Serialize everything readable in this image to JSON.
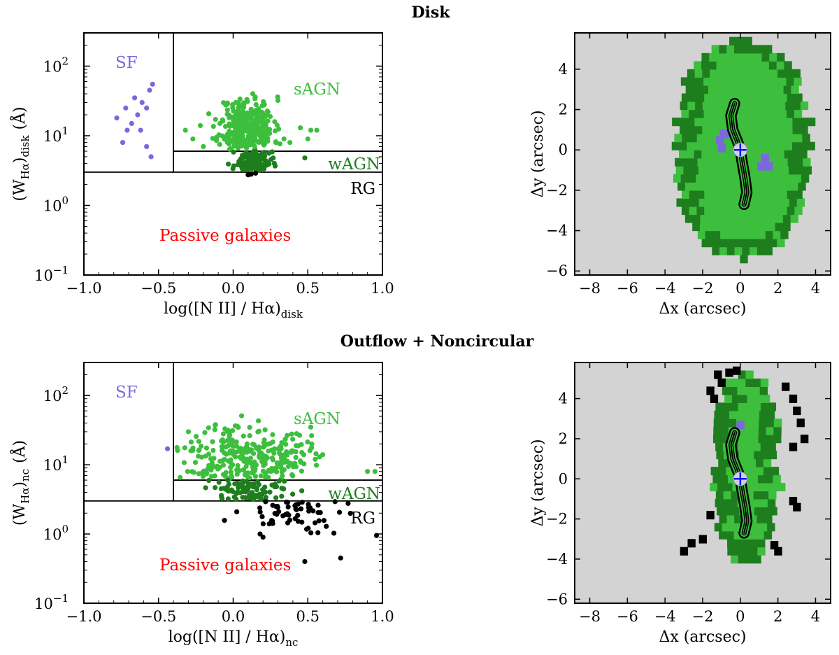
{
  "sections": [
    {
      "title": "Disk"
    },
    {
      "title": "Outflow + Noncircular"
    }
  ],
  "colors": {
    "sf": "#7B68DD",
    "sagn": "#3DBF3D",
    "wagn": "#1E7E1E",
    "rg": "#000000",
    "passive": "#FF0000",
    "map_bg": "#D3D3D3",
    "center_marker": "#1010FF"
  },
  "chart_data": [
    {
      "type": "scatter",
      "panel": "whan-disk",
      "xlabel": "log([N II] / Hα)",
      "xlabel_sub": "disk",
      "ylabel": "(W",
      "ylabel_sub_inner": "Hα",
      "ylabel_close": ")",
      "ylabel_sub": "disk",
      "ylabel_unit": "(Å)",
      "xlim": [
        -1.0,
        1.0
      ],
      "ylim": [
        0.1,
        300
      ],
      "yscale": "log",
      "xticks": [
        "−1.0",
        "−0.5",
        "0.0",
        "0.5",
        "1.0"
      ],
      "xtick_values": [
        -1.0,
        -0.5,
        0.0,
        0.5,
        1.0
      ],
      "yticks": [
        {
          "base": "10",
          "exp": "−1",
          "value": 0.1
        },
        {
          "base": "10",
          "exp": "0",
          "value": 1
        },
        {
          "base": "10",
          "exp": "1",
          "value": 10
        },
        {
          "base": "10",
          "exp": "2",
          "value": 100
        }
      ],
      "boundaries": {
        "nii_split": -0.4,
        "w_sagn_wagn": 6,
        "w_agn_rg": 3
      },
      "region_labels": {
        "sf": "SF",
        "sagn": "sAGN",
        "wagn": "wAGN",
        "rg": "RG",
        "passive": "Passive galaxies"
      },
      "series": [
        {
          "name": "SF",
          "points": [
            [
              -0.54,
              55
            ],
            [
              -0.56,
              45
            ],
            [
              -0.61,
              30
            ],
            [
              -0.66,
              35
            ],
            [
              -0.72,
              25
            ],
            [
              -0.78,
              18
            ],
            [
              -0.64,
              20
            ],
            [
              -0.58,
              25
            ],
            [
              -0.68,
              15
            ],
            [
              -0.71,
              12
            ],
            [
              -0.62,
              12
            ],
            [
              -0.74,
              8
            ],
            [
              -0.58,
              7
            ],
            [
              -0.55,
              5
            ]
          ]
        },
        {
          "name": "sAGN",
          "generated": {
            "count": 300,
            "x_mean": 0.09,
            "x_sd": 0.09,
            "logy_mean": 1.12,
            "logy_sd": 0.22,
            "ymin": 6.2,
            "ymax": 44,
            "seed": 11
          },
          "extra": [
            [
              -0.32,
              12
            ],
            [
              -0.27,
              9
            ],
            [
              -0.22,
              14
            ],
            [
              0.5,
              9
            ],
            [
              0.52,
              12
            ],
            [
              0.56,
              12
            ],
            [
              0.45,
              13
            ],
            [
              -0.2,
              7
            ],
            [
              0.38,
              8
            ]
          ]
        },
        {
          "name": "wAGN",
          "generated": {
            "count": 110,
            "x_mean": 0.13,
            "x_sd": 0.06,
            "logy_mean": 0.62,
            "logy_sd": 0.1,
            "ymin": 3.1,
            "ymax": 6.0,
            "seed": 23
          },
          "extra": [
            [
              0.48,
              4.8
            ]
          ]
        },
        {
          "name": "RG",
          "points": [
            [
              0.12,
              2.8
            ],
            [
              0.15,
              2.9
            ],
            [
              0.1,
              2.75
            ]
          ]
        }
      ]
    },
    {
      "type": "heatmap",
      "panel": "map-disk",
      "xlabel": "Δx (arcsec)",
      "ylabel": "Δy (arcsec)",
      "xlim": [
        -8.8,
        4.8
      ],
      "ylim": [
        -6.2,
        5.8
      ],
      "xticks": [
        "−8",
        "−6",
        "−4",
        "−2",
        "0",
        "2",
        "4"
      ],
      "xtick_values": [
        -8,
        -6,
        -4,
        -2,
        0,
        2,
        4
      ],
      "yticks": [
        "−6",
        "−4",
        "−2",
        "0",
        "2",
        "4"
      ],
      "ytick_values": [
        -6,
        -4,
        -2,
        0,
        2,
        4
      ],
      "region": {
        "cx": 0.0,
        "cy": -0.2,
        "top": 5.3,
        "bottom": -5.6,
        "halfwidth": 3.45
      },
      "jet": [
        [
          -0.3,
          2.3
        ],
        [
          -0.5,
          1.7
        ],
        [
          -0.4,
          1.0
        ],
        [
          -0.1,
          0.3
        ],
        [
          0.0,
          0.0
        ],
        [
          0.1,
          -0.6
        ],
        [
          0.25,
          -1.4
        ],
        [
          0.35,
          -2.1
        ],
        [
          0.2,
          -2.7
        ]
      ],
      "sf_pixels": [
        [
          -1.3,
          0.3
        ],
        [
          -1.2,
          -0.1
        ],
        [
          -0.9,
          0.6
        ],
        [
          -1.1,
          0.6
        ],
        [
          1.1,
          -0.6
        ],
        [
          1.3,
          -1.0
        ],
        [
          1.1,
          -1.0
        ],
        [
          0.9,
          -1.0
        ]
      ]
    },
    {
      "type": "scatter",
      "panel": "whan-nc",
      "xlabel": "log([N II] / Hα)",
      "xlabel_sub": "nc",
      "ylabel": "(W",
      "ylabel_sub_inner": "Hα",
      "ylabel_close": ")",
      "ylabel_sub": "nc",
      "ylabel_unit": "(Å)",
      "xlim": [
        -1.0,
        1.0
      ],
      "ylim": [
        0.1,
        300
      ],
      "yscale": "log",
      "xticks": [
        "−1.0",
        "−0.5",
        "0.0",
        "0.5",
        "1.0"
      ],
      "xtick_values": [
        -1.0,
        -0.5,
        0.0,
        0.5,
        1.0
      ],
      "yticks": [
        {
          "base": "10",
          "exp": "−1",
          "value": 0.1
        },
        {
          "base": "10",
          "exp": "0",
          "value": 1
        },
        {
          "base": "10",
          "exp": "1",
          "value": 10
        },
        {
          "base": "10",
          "exp": "2",
          "value": 100
        }
      ],
      "boundaries": {
        "nii_split": -0.4,
        "w_sagn_wagn": 6,
        "w_agn_rg": 3
      },
      "region_labels": {
        "sf": "SF",
        "sagn": "sAGN",
        "wagn": "wAGN",
        "rg": "RG",
        "passive": "Passive galaxies"
      },
      "series": [
        {
          "name": "SF",
          "points": [
            [
              -0.44,
              17
            ]
          ]
        },
        {
          "name": "sAGN",
          "generated": {
            "count": 280,
            "x_mean": 0.1,
            "x_sd": 0.2,
            "logy_mean": 1.1,
            "logy_sd": 0.25,
            "ymin": 6.2,
            "ymax": 60,
            "seed": 37
          },
          "extra": [
            [
              0.9,
              8
            ],
            [
              0.95,
              8
            ],
            [
              0.55,
              12
            ],
            [
              0.6,
              14
            ],
            [
              -0.3,
              30
            ]
          ]
        },
        {
          "name": "wAGN",
          "generated": {
            "count": 90,
            "x_mean": 0.12,
            "x_sd": 0.13,
            "logy_mean": 0.63,
            "logy_sd": 0.1,
            "ymin": 3.1,
            "ymax": 6.0,
            "seed": 41
          },
          "extra": []
        },
        {
          "name": "RG",
          "generated": {
            "count": 60,
            "x_mean": 0.42,
            "x_sd": 0.18,
            "logy_mean": 0.3,
            "logy_sd": 0.2,
            "ymin": 0.9,
            "ymax": 3.0,
            "seed": 53
          },
          "extra": [
            [
              0.48,
              0.4
            ],
            [
              0.72,
              0.45
            ],
            [
              0.96,
              0.95
            ],
            [
              0.2,
              0.9
            ],
            [
              0.18,
              1.0
            ]
          ]
        }
      ]
    },
    {
      "type": "heatmap",
      "panel": "map-nc",
      "xlabel": "Δx (arcsec)",
      "ylabel": "Δy (arcsec)",
      "xlim": [
        -8.8,
        4.8
      ],
      "ylim": [
        -6.2,
        5.8
      ],
      "xticks": [
        "−8",
        "−6",
        "−4",
        "−2",
        "0",
        "2",
        "4"
      ],
      "xtick_values": [
        -8,
        -6,
        -4,
        -2,
        0,
        2,
        4
      ],
      "yticks": [
        "−6",
        "−4",
        "−2",
        "0",
        "2",
        "4"
      ],
      "ytick_values": [
        -6,
        -4,
        -2,
        0,
        2,
        4
      ],
      "region": {
        "cx": 0.2,
        "cy": 0.5,
        "top": 5.2,
        "bottom": -4.6,
        "halfwidth": 1.6
      },
      "jet": [
        [
          -0.3,
          2.3
        ],
        [
          -0.5,
          1.7
        ],
        [
          -0.4,
          1.0
        ],
        [
          -0.1,
          0.3
        ],
        [
          0.0,
          0.0
        ],
        [
          0.1,
          -0.6
        ],
        [
          0.25,
          -1.4
        ],
        [
          0.35,
          -2.1
        ],
        [
          0.2,
          -2.7
        ]
      ],
      "sf_pixels": [
        [
          -0.2,
          2.5
        ]
      ],
      "rg_pixels": [
        [
          -1.4,
          5.0
        ],
        [
          -1.2,
          4.6
        ],
        [
          -0.8,
          5.1
        ],
        [
          -0.4,
          5.2
        ],
        [
          -1.8,
          4.2
        ],
        [
          -1.6,
          3.8
        ],
        [
          2.2,
          4.4
        ],
        [
          2.6,
          3.8
        ],
        [
          2.8,
          3.2
        ],
        [
          3.0,
          2.6
        ],
        [
          3.2,
          1.8
        ],
        [
          2.6,
          1.4
        ],
        [
          2.6,
          -1.3
        ],
        [
          2.8,
          -1.6
        ],
        [
          1.6,
          -3.5
        ],
        [
          1.8,
          -3.8
        ],
        [
          -3.2,
          -3.8
        ],
        [
          -2.8,
          -3.4
        ],
        [
          -2.2,
          -3.2
        ],
        [
          -1.8,
          -2.0
        ]
      ]
    }
  ]
}
